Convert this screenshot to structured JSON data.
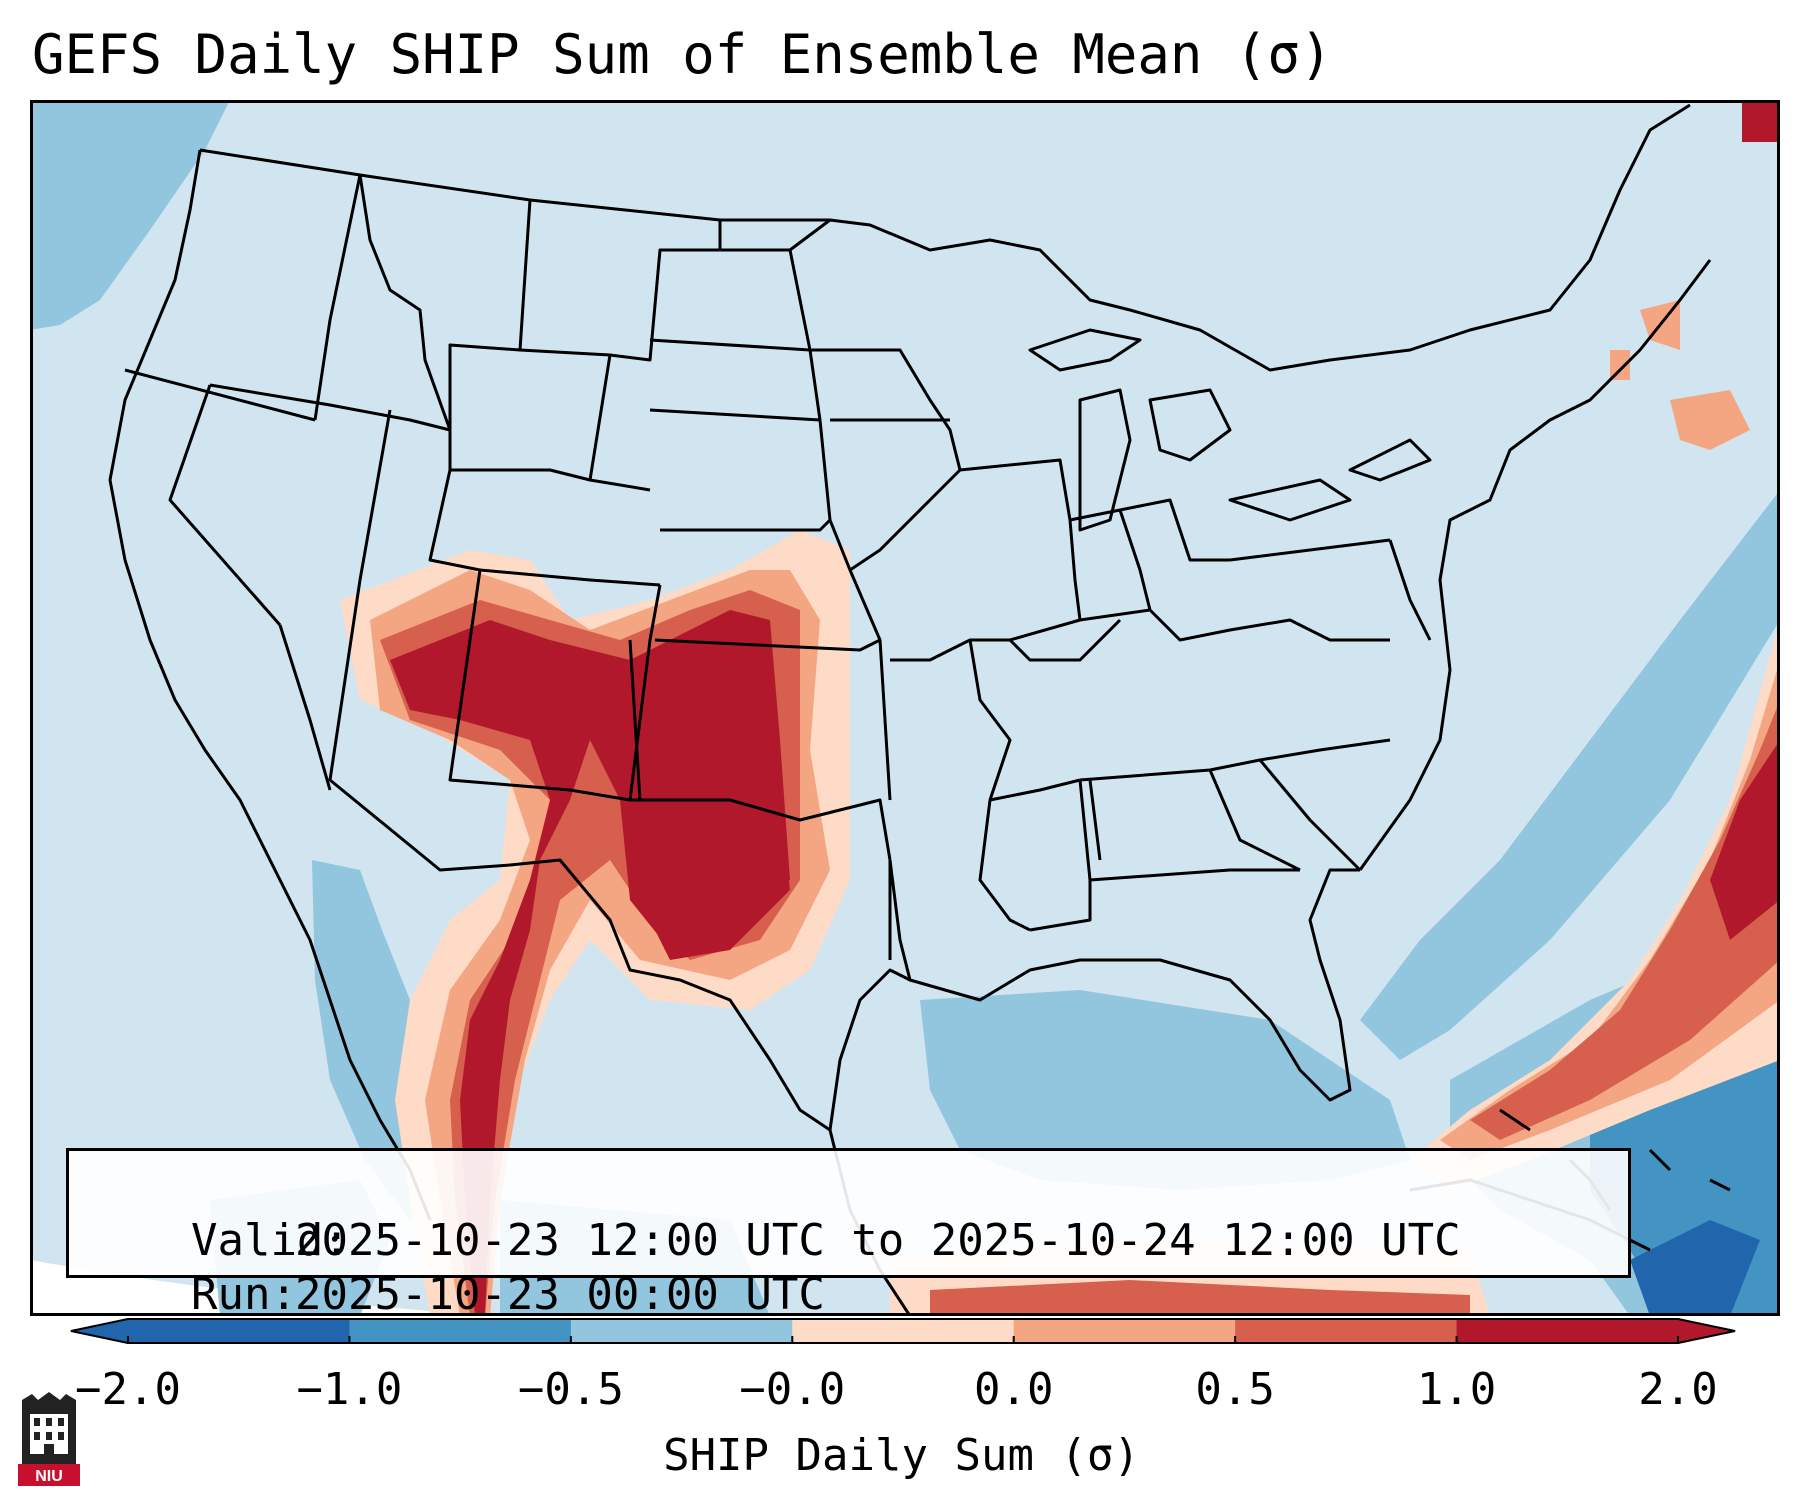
{
  "title": "GEFS Daily SHIP Sum of Ensemble Mean (σ)",
  "info": {
    "valid_label": "Valid:",
    "valid_value": "2025-10-23 12:00 UTC to 2025-10-24 12:00 UTC",
    "run_label": "Run:",
    "run_value": "2025-10-23 00:00 UTC"
  },
  "colorbar": {
    "label": "SHIP Daily Sum (σ)",
    "ticks": [
      "−2.0",
      "−1.0",
      "−0.5",
      "−0.0",
      "0.0",
      "0.5",
      "1.0",
      "2.0"
    ],
    "colors": [
      "#2166ac",
      "#4393c3",
      "#92c5de",
      "#d1e5f0",
      "#fddbc7",
      "#f4a582",
      "#d6604d",
      "#b2182b"
    ]
  },
  "logo": {
    "text": "NIU"
  },
  "colors": {
    "background_level": "#d1e5f0",
    "outside_domain": "#ffffff",
    "high_extreme": "#b2182b",
    "low_extreme": "#2166ac"
  }
}
